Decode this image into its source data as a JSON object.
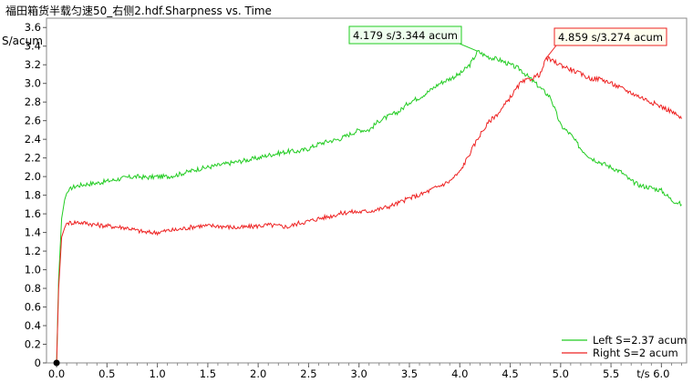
{
  "title": "福田箱货半载匀速50_右侧2.hdf.Sharpness vs. Time",
  "chart_data": {
    "type": "line",
    "title": "福田箱货半载匀速50_右侧2.hdf.Sharpness vs. Time",
    "ylabel": "S/acum",
    "xlabel": "t/s",
    "xlim": [
      -0.1,
      6.25
    ],
    "ylim": [
      0,
      3.7
    ],
    "x_ticks": [
      0.0,
      0.5,
      1.0,
      1.5,
      2.0,
      2.5,
      3.0,
      3.5,
      4.0,
      4.5,
      5.0,
      5.5,
      6.0
    ],
    "x_tick_labels": [
      "0.0",
      "0.5",
      "1.0",
      "1.5",
      "2.0",
      "2.5",
      "3.0",
      "3.5",
      "4.0",
      "4.5",
      "5.0",
      "5.5",
      "6.0"
    ],
    "y_ticks": [
      0,
      0.2,
      0.4,
      0.6,
      0.8,
      1.0,
      1.2,
      1.4,
      1.6,
      1.8,
      2.0,
      2.2,
      2.4,
      2.6,
      2.8,
      3.0,
      3.2,
      3.4,
      3.6
    ],
    "y_tick_labels": [
      "0",
      "0.2",
      "0.4",
      "0.6",
      "0.8",
      "1.0",
      "1.2",
      "1.4",
      "1.6",
      "1.8",
      "2.0",
      "2.2",
      "2.4",
      "2.6",
      "2.8",
      "3.0",
      "3.2",
      "3.4",
      "3.6"
    ],
    "grid": false,
    "legend": "bottom-right",
    "series": [
      {
        "name": "Left S=2.37 acum",
        "color": "#22cc22",
        "x": [
          0.0,
          0.02,
          0.05,
          0.08,
          0.1,
          0.15,
          0.2,
          0.3,
          0.4,
          0.5,
          0.6,
          0.7,
          0.8,
          0.9,
          1.0,
          1.1,
          1.2,
          1.3,
          1.4,
          1.5,
          1.6,
          1.7,
          1.8,
          1.9,
          2.0,
          2.1,
          2.2,
          2.3,
          2.4,
          2.5,
          2.6,
          2.7,
          2.8,
          2.9,
          3.0,
          3.1,
          3.2,
          3.3,
          3.4,
          3.5,
          3.6,
          3.7,
          3.8,
          3.9,
          4.0,
          4.1,
          4.179,
          4.25,
          4.3,
          4.4,
          4.5,
          4.6,
          4.7,
          4.8,
          4.9,
          5.0,
          5.1,
          5.2,
          5.3,
          5.4,
          5.5,
          5.6,
          5.7,
          5.8,
          5.9,
          6.0,
          6.1,
          6.2
        ],
        "y": [
          0.0,
          0.9,
          1.55,
          1.75,
          1.82,
          1.88,
          1.9,
          1.92,
          1.93,
          1.95,
          1.97,
          1.99,
          2.0,
          1.99,
          2.0,
          2.0,
          2.02,
          2.05,
          2.08,
          2.1,
          2.12,
          2.14,
          2.16,
          2.18,
          2.2,
          2.23,
          2.25,
          2.27,
          2.27,
          2.3,
          2.35,
          2.38,
          2.4,
          2.45,
          2.5,
          2.5,
          2.6,
          2.65,
          2.7,
          2.8,
          2.85,
          2.92,
          3.0,
          3.05,
          3.1,
          3.2,
          3.344,
          3.3,
          3.28,
          3.25,
          3.2,
          3.15,
          3.05,
          2.95,
          2.85,
          2.55,
          2.45,
          2.3,
          2.2,
          2.15,
          2.1,
          2.05,
          1.95,
          1.9,
          1.88,
          1.85,
          1.75,
          1.7
        ]
      },
      {
        "name": "Right S=2 acum",
        "color": "#ee2222",
        "x": [
          0.0,
          0.02,
          0.05,
          0.08,
          0.1,
          0.2,
          0.3,
          0.4,
          0.5,
          0.6,
          0.7,
          0.8,
          0.9,
          1.0,
          1.1,
          1.2,
          1.3,
          1.4,
          1.5,
          1.6,
          1.7,
          1.8,
          1.9,
          2.0,
          2.1,
          2.2,
          2.3,
          2.4,
          2.5,
          2.6,
          2.7,
          2.8,
          2.9,
          3.0,
          3.1,
          3.2,
          3.3,
          3.4,
          3.5,
          3.6,
          3.7,
          3.8,
          3.9,
          4.0,
          4.1,
          4.2,
          4.3,
          4.4,
          4.5,
          4.6,
          4.7,
          4.8,
          4.859,
          4.9,
          5.0,
          5.1,
          5.2,
          5.3,
          5.4,
          5.5,
          5.6,
          5.7,
          5.8,
          5.9,
          6.0,
          6.1,
          6.2
        ],
        "y": [
          0.0,
          0.8,
          1.35,
          1.45,
          1.5,
          1.51,
          1.5,
          1.48,
          1.47,
          1.46,
          1.45,
          1.42,
          1.4,
          1.4,
          1.42,
          1.43,
          1.45,
          1.47,
          1.47,
          1.47,
          1.46,
          1.45,
          1.46,
          1.47,
          1.48,
          1.47,
          1.46,
          1.5,
          1.52,
          1.55,
          1.57,
          1.6,
          1.62,
          1.62,
          1.63,
          1.65,
          1.68,
          1.72,
          1.77,
          1.8,
          1.85,
          1.9,
          1.95,
          2.05,
          2.25,
          2.45,
          2.6,
          2.7,
          2.85,
          3.0,
          3.05,
          3.1,
          3.274,
          3.25,
          3.2,
          3.15,
          3.1,
          3.05,
          3.05,
          3.0,
          2.95,
          2.9,
          2.85,
          2.8,
          2.75,
          2.7,
          2.62
        ]
      }
    ],
    "annotations": [
      {
        "text": "4.179 s/3.344 acum",
        "x": 4.179,
        "y": 3.344,
        "series": 0
      },
      {
        "text": "4.859 s/3.274 acum",
        "x": 4.859,
        "y": 3.274,
        "series": 1
      }
    ]
  }
}
